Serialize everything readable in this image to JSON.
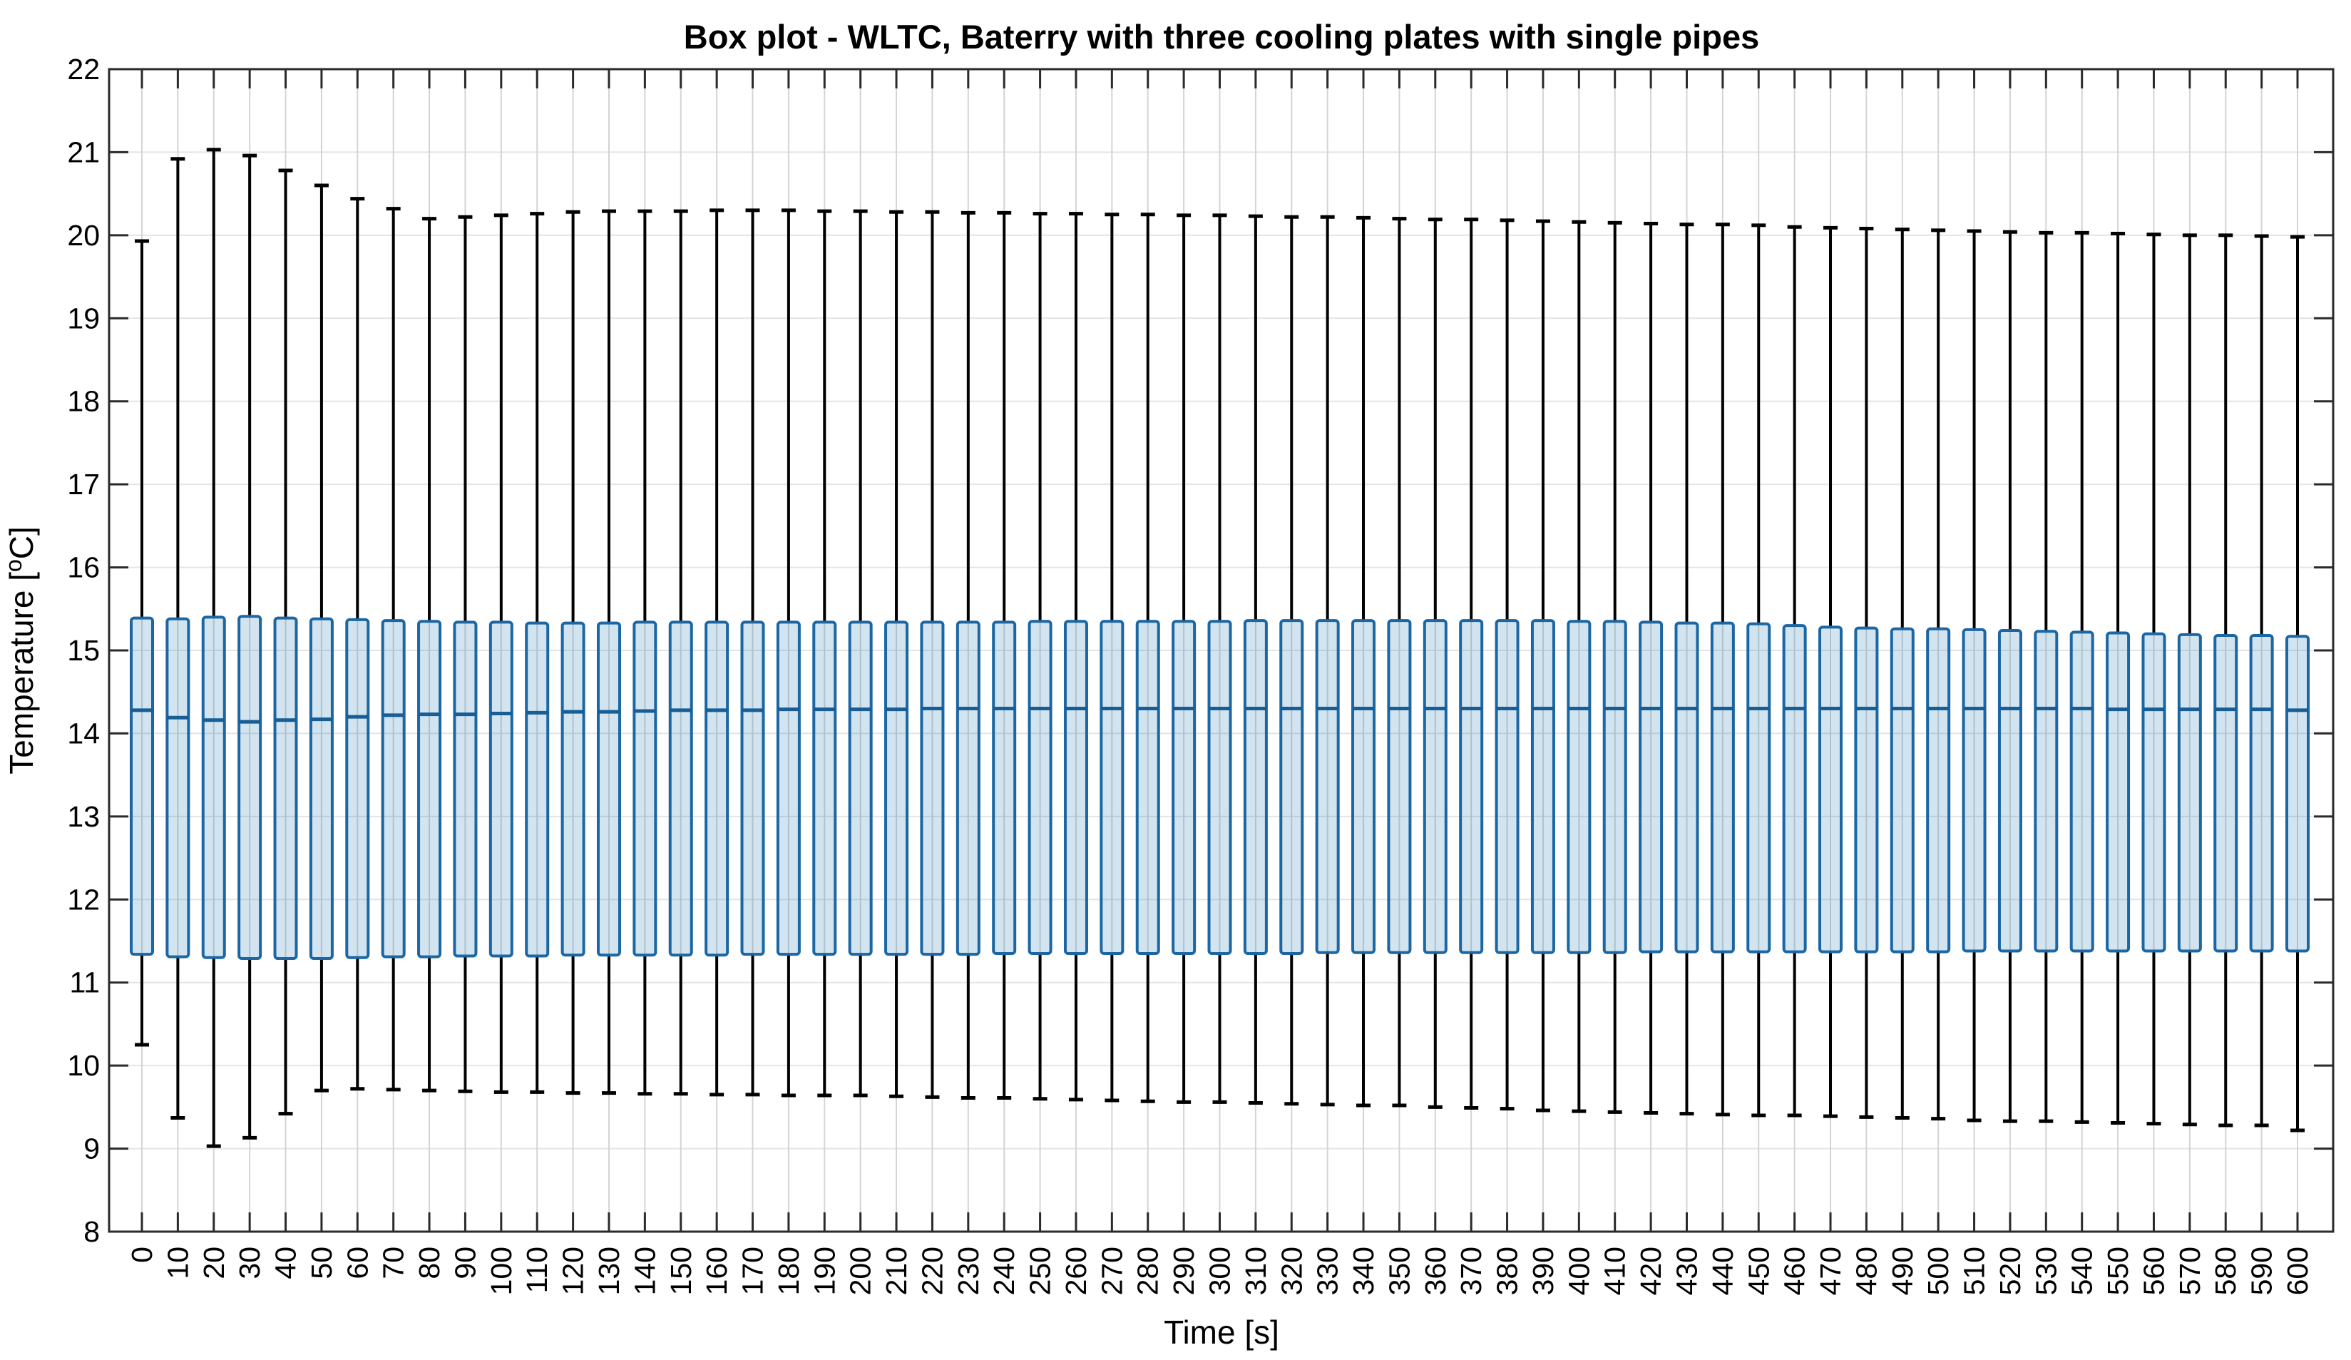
{
  "figure": {
    "ylabel_pre": "Temperature [",
    "ylabel_sup": "o",
    "ylabel_post": "C]"
  },
  "chart_data": {
    "type": "boxplot",
    "title": "Box plot - WLTC, Baterry with three cooling plates with single pipes",
    "xlabel": "Time [s]",
    "ylabel": "Temperature [°C]",
    "ylim": [
      8,
      22
    ],
    "y_ticks": [
      8,
      9,
      10,
      11,
      12,
      13,
      14,
      15,
      16,
      17,
      18,
      19,
      20,
      21,
      22
    ],
    "x_tick_step_s": 10,
    "grid": true,
    "legend": null,
    "boxes_columns": [
      "time_s",
      "whisker_low",
      "q1",
      "median",
      "q3",
      "whisker_high"
    ],
    "boxes": [
      [
        0,
        10.25,
        11.34,
        14.28,
        15.39,
        19.93
      ],
      [
        10,
        9.37,
        11.31,
        14.19,
        15.38,
        20.92
      ],
      [
        20,
        9.03,
        11.3,
        14.16,
        15.4,
        21.03
      ],
      [
        30,
        9.13,
        11.29,
        14.14,
        15.41,
        20.96
      ],
      [
        40,
        9.42,
        11.29,
        14.16,
        15.39,
        20.78
      ],
      [
        50,
        9.7,
        11.29,
        14.17,
        15.38,
        20.6
      ],
      [
        60,
        9.72,
        11.3,
        14.2,
        15.37,
        20.44
      ],
      [
        70,
        9.71,
        11.31,
        14.22,
        15.36,
        20.32
      ],
      [
        80,
        9.7,
        11.31,
        14.23,
        15.35,
        20.2
      ],
      [
        90,
        9.69,
        11.32,
        14.23,
        15.34,
        20.22
      ],
      [
        100,
        9.68,
        11.32,
        14.24,
        15.34,
        20.24
      ],
      [
        110,
        9.68,
        11.32,
        14.25,
        15.33,
        20.26
      ],
      [
        120,
        9.67,
        11.33,
        14.26,
        15.33,
        20.28
      ],
      [
        130,
        9.67,
        11.33,
        14.26,
        15.33,
        20.29
      ],
      [
        140,
        9.66,
        11.33,
        14.27,
        15.34,
        20.29
      ],
      [
        150,
        9.66,
        11.33,
        14.28,
        15.34,
        20.29
      ],
      [
        160,
        9.65,
        11.33,
        14.28,
        15.34,
        20.3
      ],
      [
        170,
        9.65,
        11.34,
        14.28,
        15.34,
        20.3
      ],
      [
        180,
        9.64,
        11.34,
        14.29,
        15.34,
        20.3
      ],
      [
        190,
        9.64,
        11.34,
        14.29,
        15.34,
        20.29
      ],
      [
        200,
        9.64,
        11.34,
        14.29,
        15.34,
        20.29
      ],
      [
        210,
        9.63,
        11.34,
        14.29,
        15.34,
        20.28
      ],
      [
        220,
        9.62,
        11.34,
        14.3,
        15.34,
        20.28
      ],
      [
        230,
        9.61,
        11.34,
        14.3,
        15.34,
        20.27
      ],
      [
        240,
        9.61,
        11.35,
        14.3,
        15.34,
        20.27
      ],
      [
        250,
        9.6,
        11.35,
        14.3,
        15.35,
        20.26
      ],
      [
        260,
        9.59,
        11.35,
        14.3,
        15.35,
        20.26
      ],
      [
        270,
        9.58,
        11.35,
        14.3,
        15.35,
        20.25
      ],
      [
        280,
        9.57,
        11.35,
        14.3,
        15.35,
        20.25
      ],
      [
        290,
        9.56,
        11.35,
        14.3,
        15.35,
        20.24
      ],
      [
        300,
        9.56,
        11.35,
        14.3,
        15.35,
        20.24
      ],
      [
        310,
        9.55,
        11.35,
        14.3,
        15.36,
        20.23
      ],
      [
        320,
        9.54,
        11.35,
        14.3,
        15.36,
        20.22
      ],
      [
        330,
        9.53,
        11.36,
        14.3,
        15.36,
        20.22
      ],
      [
        340,
        9.52,
        11.36,
        14.3,
        15.36,
        20.21
      ],
      [
        350,
        9.52,
        11.36,
        14.3,
        15.36,
        20.2
      ],
      [
        360,
        9.5,
        11.36,
        14.3,
        15.36,
        20.19
      ],
      [
        370,
        9.49,
        11.36,
        14.3,
        15.36,
        20.19
      ],
      [
        380,
        9.48,
        11.36,
        14.3,
        15.36,
        20.18
      ],
      [
        390,
        9.46,
        11.36,
        14.3,
        15.36,
        20.17
      ],
      [
        400,
        9.45,
        11.36,
        14.3,
        15.35,
        20.16
      ],
      [
        410,
        9.44,
        11.36,
        14.3,
        15.35,
        20.15
      ],
      [
        420,
        9.43,
        11.37,
        14.3,
        15.34,
        20.14
      ],
      [
        430,
        9.42,
        11.37,
        14.3,
        15.33,
        20.13
      ],
      [
        440,
        9.41,
        11.37,
        14.3,
        15.33,
        20.13
      ],
      [
        450,
        9.4,
        11.37,
        14.3,
        15.32,
        20.12
      ],
      [
        460,
        9.4,
        11.37,
        14.3,
        15.3,
        20.1
      ],
      [
        470,
        9.39,
        11.37,
        14.3,
        15.28,
        20.09
      ],
      [
        480,
        9.38,
        11.37,
        14.3,
        15.27,
        20.08
      ],
      [
        490,
        9.37,
        11.37,
        14.3,
        15.26,
        20.07
      ],
      [
        500,
        9.36,
        11.37,
        14.3,
        15.26,
        20.06
      ],
      [
        510,
        9.34,
        11.38,
        14.3,
        15.25,
        20.05
      ],
      [
        520,
        9.33,
        11.38,
        14.3,
        15.24,
        20.04
      ],
      [
        530,
        9.33,
        11.38,
        14.3,
        15.23,
        20.03
      ],
      [
        540,
        9.32,
        11.38,
        14.3,
        15.22,
        20.03
      ],
      [
        550,
        9.31,
        11.38,
        14.29,
        15.21,
        20.02
      ],
      [
        560,
        9.3,
        11.38,
        14.29,
        15.2,
        20.01
      ],
      [
        570,
        9.29,
        11.38,
        14.29,
        15.19,
        20.0
      ],
      [
        580,
        9.28,
        11.38,
        14.29,
        15.18,
        20.0
      ],
      [
        590,
        9.28,
        11.38,
        14.29,
        15.18,
        19.99
      ],
      [
        600,
        9.22,
        11.38,
        14.28,
        15.17,
        19.98
      ]
    ]
  },
  "style": {
    "background": "#ffffff",
    "box_edge": "#1b66a3",
    "box_fill": "rgba(31,120,180,0.20)",
    "median_color": "#175d96",
    "whisker_color": "#000000",
    "grid_vertical": "#d4d4d4",
    "grid_horizontal": "#e4e4e4",
    "axis_color": "#2a2a2a",
    "text_color": "#000000"
  }
}
